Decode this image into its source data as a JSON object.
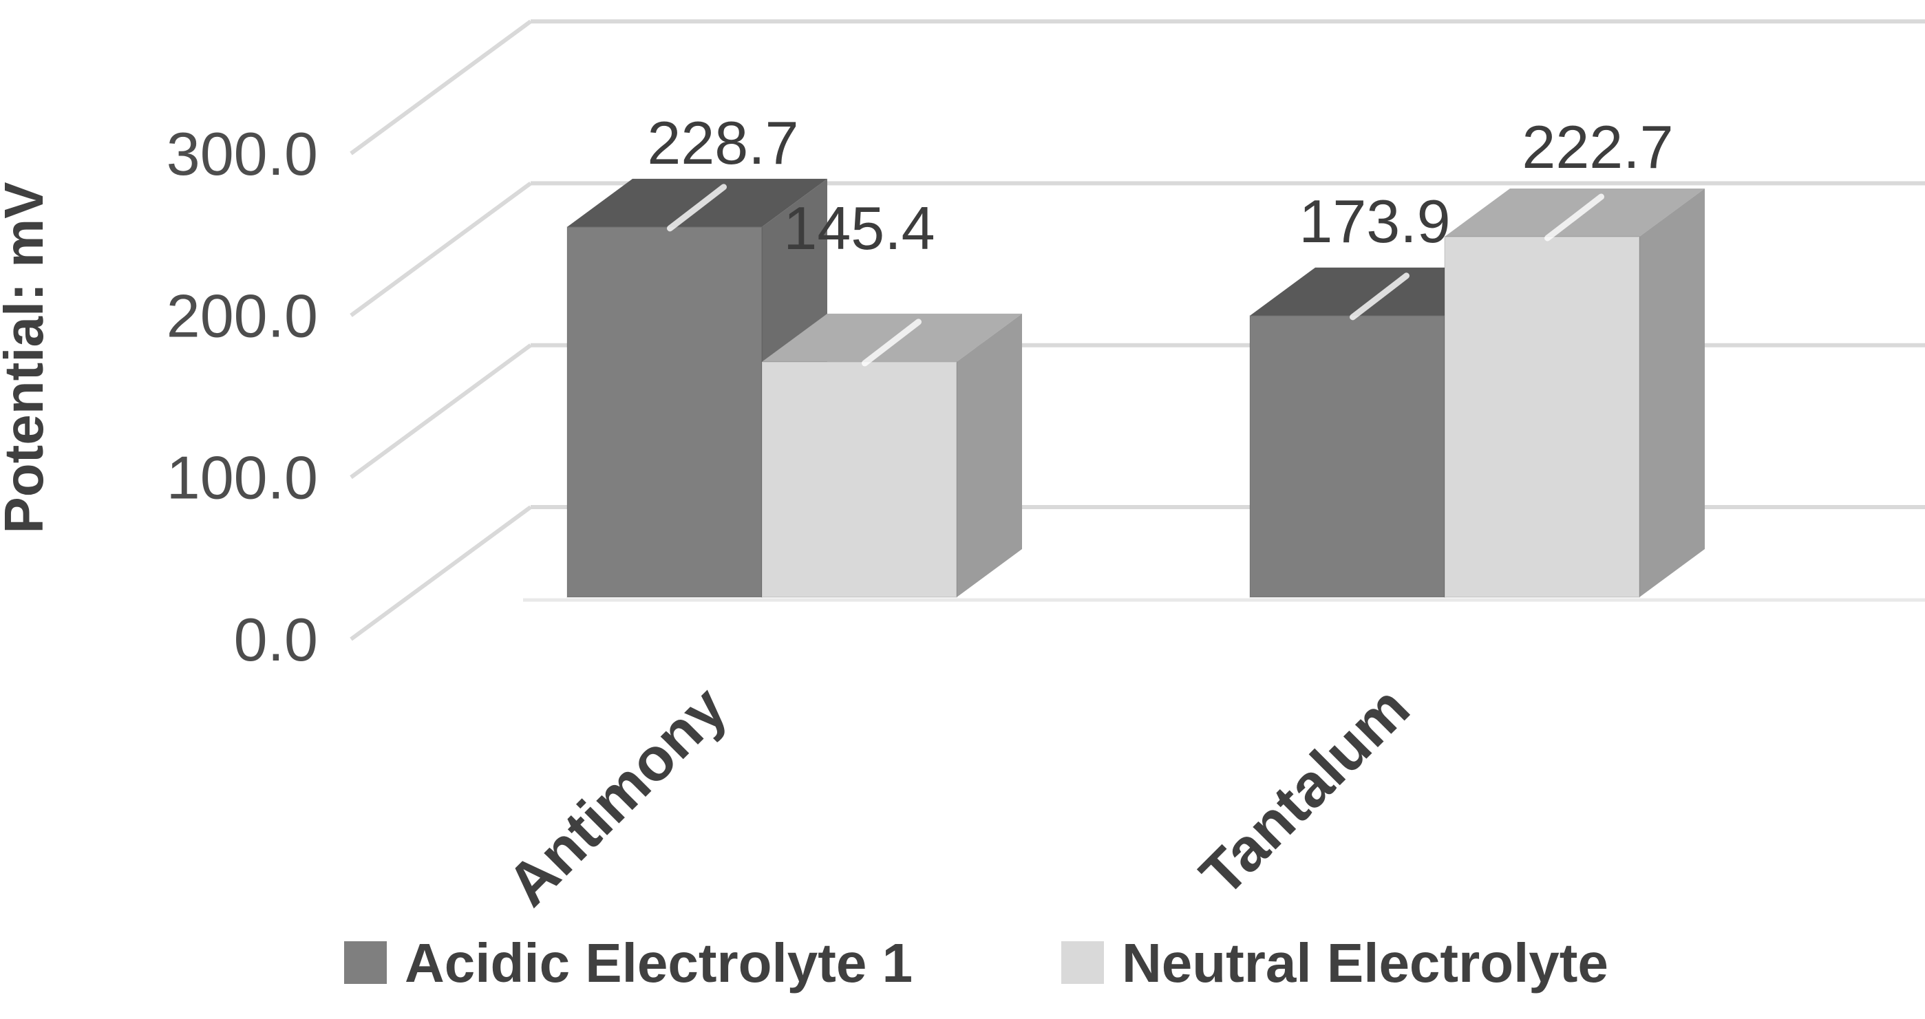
{
  "chart_data": {
    "type": "bar",
    "projection": "3d",
    "title": "",
    "ylabel": "Potential: mV",
    "xlabel": "",
    "categories": [
      "Antimony",
      "Tantalum"
    ],
    "series": [
      {
        "name": "Acidic Electrolyte 1",
        "values": [
          228.7,
          173.9
        ]
      },
      {
        "name": "Neutral Electrolyte",
        "values": [
          145.4,
          222.7
        ]
      }
    ],
    "data_label_decimals": 1,
    "yticks": [
      0,
      100,
      200,
      300
    ],
    "ytick_decimals": 1,
    "ylim": [
      0,
      300
    ],
    "grid": true,
    "legend_position": "bottom",
    "colors": {
      "series": [
        {
          "front": "#7f7f7f",
          "top": "#595959",
          "side": "#6d6d6d"
        },
        {
          "front": "#d9d9d9",
          "top": "#aeaeae",
          "side": "#9c9c9c"
        }
      ],
      "gridline": "#d9d9d9",
      "floor_line": "#e9e9e9",
      "tick_text": "#4d4d4d",
      "data_label_text": "#3d3d3d",
      "axis_title_text": "#404040",
      "category_text": "#404040",
      "legend_text": "#404040",
      "background": "#ffffff"
    },
    "layout_hints": {
      "data_label_offsets": [
        [
          [
            38,
            4
          ],
          [
            -7,
            -11
          ]
        ],
        [
          [
            -47,
            -68
          ],
          [
            34,
            -4
          ]
        ]
      ],
      "category_label_angle_deg": -45
    }
  }
}
